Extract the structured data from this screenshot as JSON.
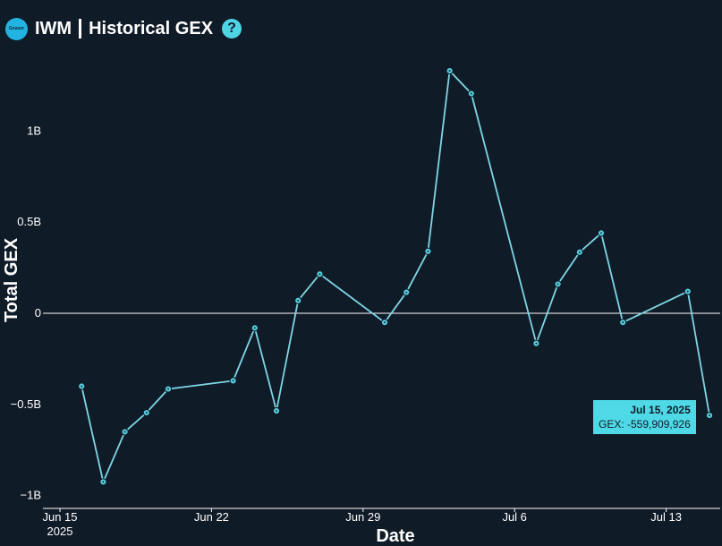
{
  "header": {
    "logo_text": "Gnaser",
    "ticker": "IWM",
    "title": "Historical GEX",
    "help_glyph": "?"
  },
  "colors": {
    "background": "#101b28",
    "line": "#7fd6e4",
    "point_fill": "#55c8d8",
    "zero_line": "#ffffff",
    "tooltip_bg": "#4fd9e6"
  },
  "tooltip": {
    "date": "Jul 15, 2025",
    "value_text": "GEX: -559,909,926"
  },
  "chart_data": {
    "type": "line",
    "xlabel": "Date",
    "ylabel": "Total GEX",
    "x_ticks": [
      {
        "date": "2025-06-15",
        "label": "Jun 15",
        "sublabel": "2025"
      },
      {
        "date": "2025-06-22",
        "label": "Jun 22"
      },
      {
        "date": "2025-06-29",
        "label": "Jun 29"
      },
      {
        "date": "2025-07-06",
        "label": "Jul 6"
      },
      {
        "date": "2025-07-13",
        "label": "Jul 13"
      }
    ],
    "y_ticks": [
      {
        "value": 1000000000,
        "label": "1B"
      },
      {
        "value": 500000000,
        "label": "0.5B"
      },
      {
        "value": 0,
        "label": "0"
      },
      {
        "value": -500000000,
        "label": "−0.5B"
      },
      {
        "value": -1000000000,
        "label": "−1B"
      }
    ],
    "xlim": [
      "2025-06-15",
      "2025-07-15"
    ],
    "ylim": [
      -1070000000,
      1350000000
    ],
    "series": [
      {
        "points": [
          {
            "x": "2025-06-16",
            "y": -400000000
          },
          {
            "x": "2025-06-17",
            "y": -925000000
          },
          {
            "x": "2025-06-18",
            "y": -650000000
          },
          {
            "x": "2025-06-19",
            "y": -545000000
          },
          {
            "x": "2025-06-20",
            "y": -415000000
          },
          {
            "x": "2025-06-23",
            "y": -370000000
          },
          {
            "x": "2025-06-24",
            "y": -80000000
          },
          {
            "x": "2025-06-25",
            "y": -535000000
          },
          {
            "x": "2025-06-26",
            "y": 70000000
          },
          {
            "x": "2025-06-27",
            "y": 215000000
          },
          {
            "x": "2025-06-30",
            "y": -50000000
          },
          {
            "x": "2025-07-01",
            "y": 115000000
          },
          {
            "x": "2025-07-02",
            "y": 340000000
          },
          {
            "x": "2025-07-03",
            "y": 1330000000
          },
          {
            "x": "2025-07-04",
            "y": 1205000000
          },
          {
            "x": "2025-07-07",
            "y": -165000000
          },
          {
            "x": "2025-07-08",
            "y": 160000000
          },
          {
            "x": "2025-07-09",
            "y": 335000000
          },
          {
            "x": "2025-07-10",
            "y": 440000000
          },
          {
            "x": "2025-07-11",
            "y": -50000000
          },
          {
            "x": "2025-07-14",
            "y": 120000000
          },
          {
            "x": "2025-07-15",
            "y": -559909926
          }
        ]
      }
    ]
  }
}
